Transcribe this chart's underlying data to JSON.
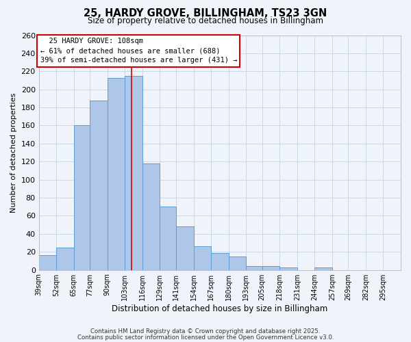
{
  "title": "25, HARDY GROVE, BILLINGHAM, TS23 3GN",
  "subtitle": "Size of property relative to detached houses in Billingham",
  "xlabel": "Distribution of detached houses by size in Billingham",
  "ylabel": "Number of detached properties",
  "bar_labels": [
    "39sqm",
    "52sqm",
    "65sqm",
    "77sqm",
    "90sqm",
    "103sqm",
    "116sqm",
    "129sqm",
    "141sqm",
    "154sqm",
    "167sqm",
    "180sqm",
    "193sqm",
    "205sqm",
    "218sqm",
    "231sqm",
    "244sqm",
    "257sqm",
    "269sqm",
    "282sqm",
    "295sqm"
  ],
  "bar_values": [
    16,
    25,
    160,
    188,
    213,
    215,
    118,
    70,
    48,
    26,
    19,
    15,
    4,
    4,
    3,
    0,
    3,
    0,
    0,
    0,
    0
  ],
  "bar_color": "#aec6e8",
  "bar_edge_color": "#5b9bd5",
  "grid_color": "#c8d8e8",
  "background_color": "#f0f4fa",
  "vline_x": 108,
  "vline_color": "#cc0000",
  "annotation_title": "25 HARDY GROVE: 108sqm",
  "annotation_line1": "← 61% of detached houses are smaller (688)",
  "annotation_line2": "39% of semi-detached houses are larger (431) →",
  "annotation_box_facecolor": "#ffffff",
  "annotation_box_edgecolor": "#cc0000",
  "ylim": [
    0,
    260
  ],
  "yticks": [
    0,
    20,
    40,
    60,
    80,
    100,
    120,
    140,
    160,
    180,
    200,
    220,
    240,
    260
  ],
  "footnote1": "Contains HM Land Registry data © Crown copyright and database right 2025.",
  "footnote2": "Contains public sector information licensed under the Open Government Licence v3.0.",
  "bin_starts": [
    39,
    52,
    65,
    77,
    90,
    103,
    116,
    129,
    141,
    154,
    167,
    180,
    193,
    205,
    218,
    231,
    244,
    257,
    269,
    282,
    295
  ]
}
